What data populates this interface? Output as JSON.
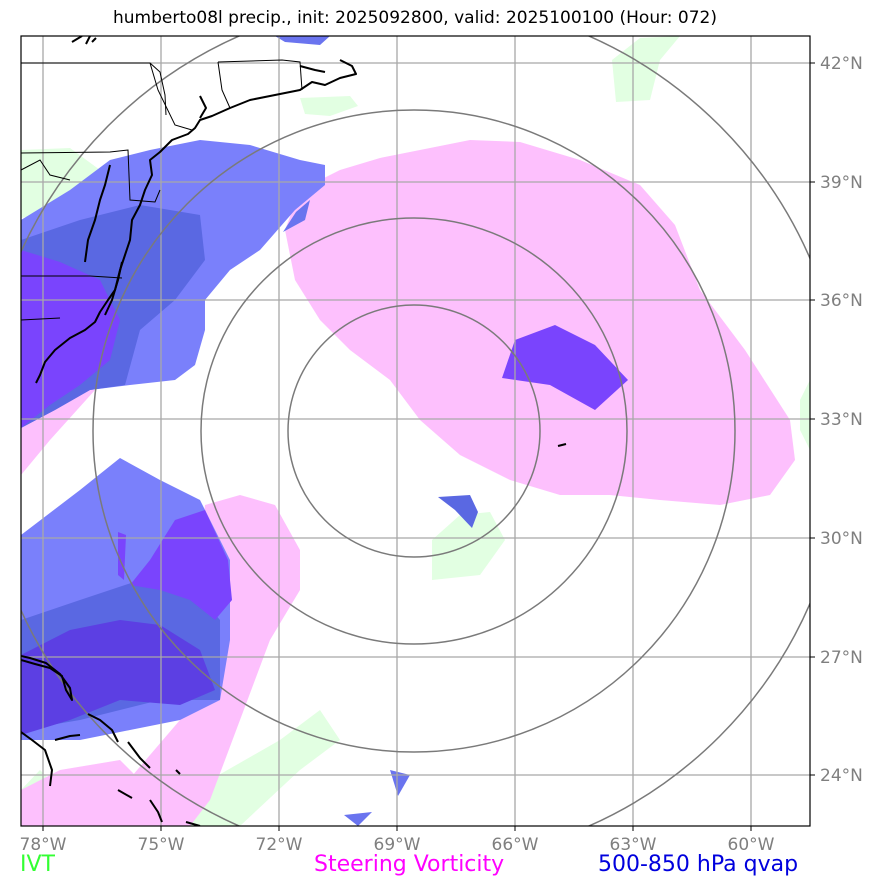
{
  "title": "humberto08l precip., init: 2025092800, valid: 2025100100 (Hour: 072)",
  "lon_labels": [
    "78°W",
    "75°W",
    "72°W",
    "69°W",
    "66°W",
    "63°W",
    "60°W"
  ],
  "lat_labels": [
    "42°N",
    "39°N",
    "36°N",
    "33°N",
    "30°N",
    "27°N",
    "24°N"
  ],
  "legend": {
    "ivt": "IVT",
    "vorticity": "Steering Vorticity",
    "qvap": "500-850 hPa qvap"
  },
  "colors": {
    "ivt": "#33ff33",
    "vorticity": "#ff00ff",
    "qvap": "#0000dd",
    "grid": "#7f7f7f"
  }
}
